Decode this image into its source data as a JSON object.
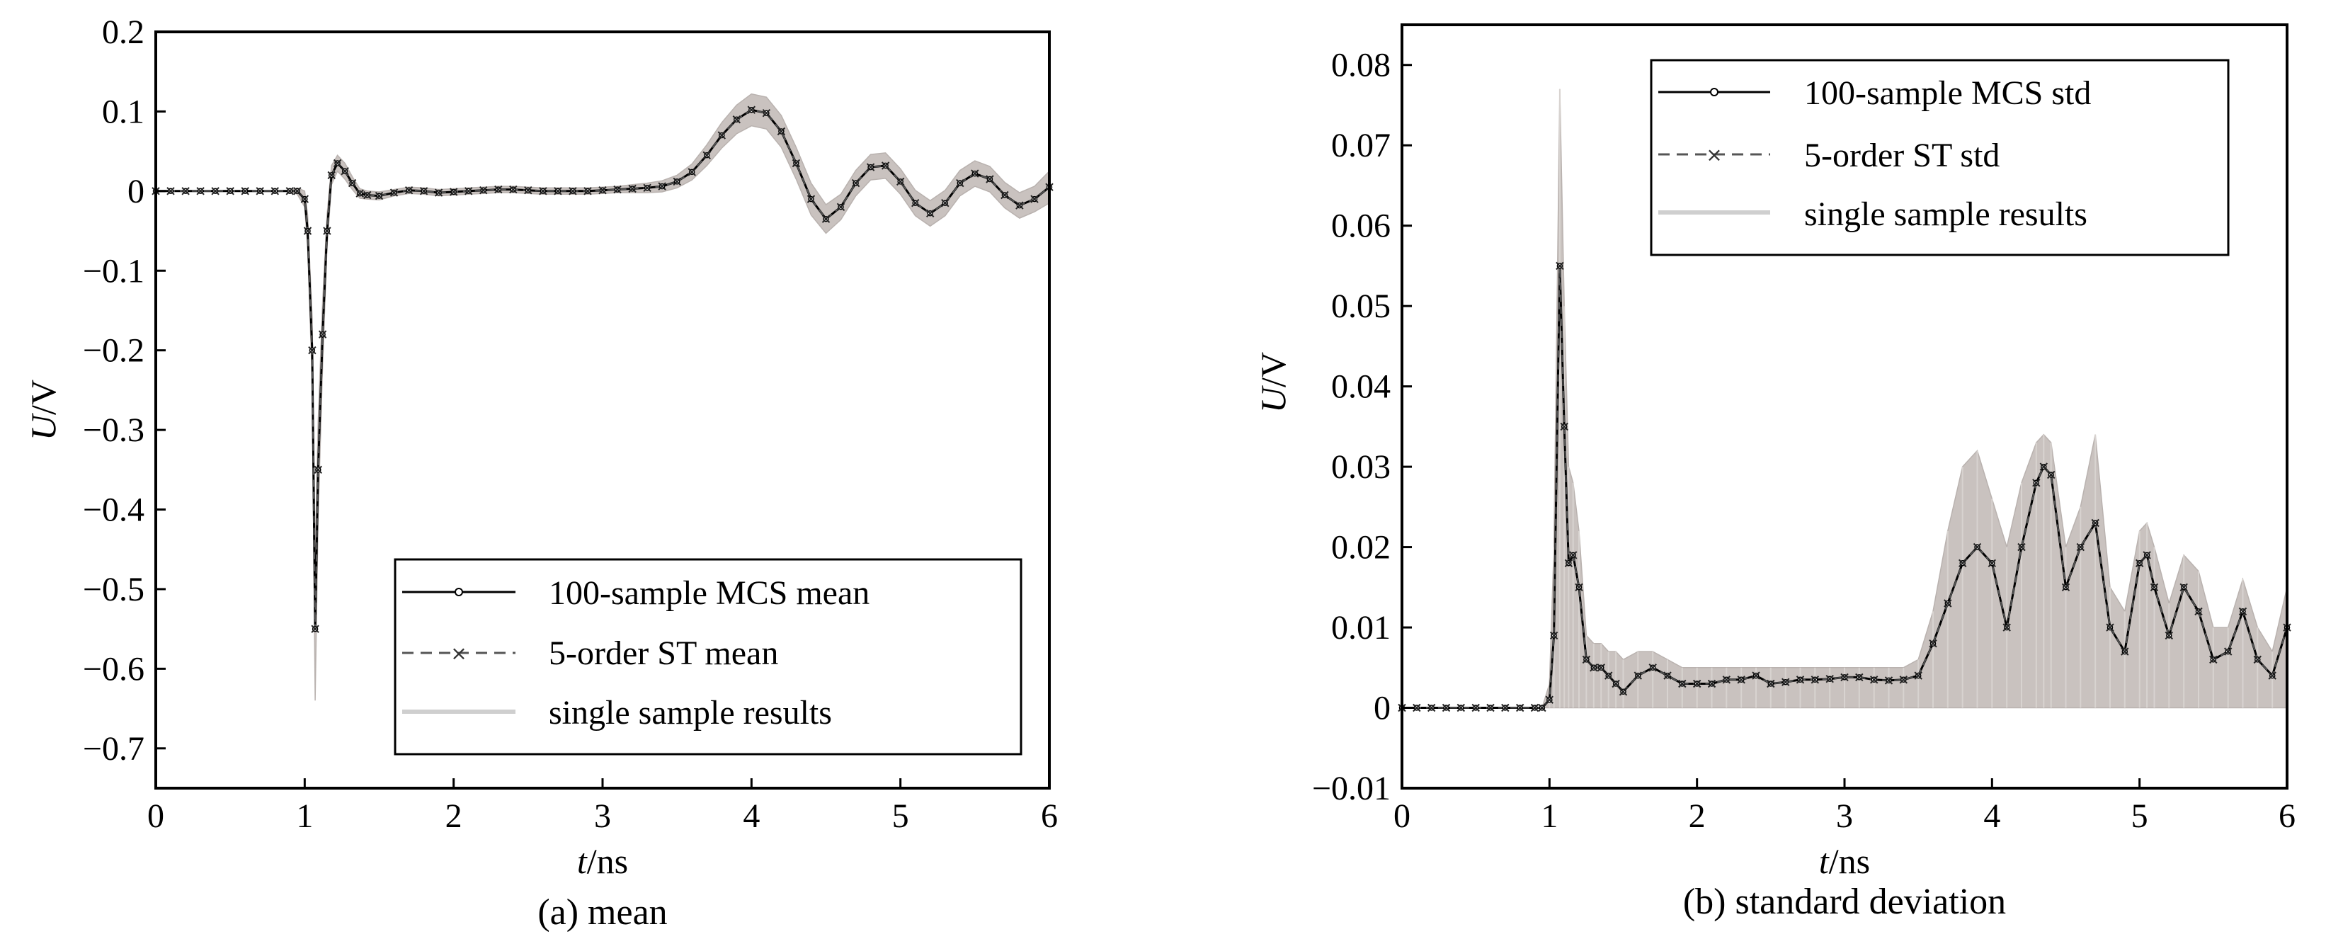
{
  "colors": {
    "band": "#c9c2bf",
    "band_dark": "#b9b2af",
    "line": "#000000",
    "dashed": "#555555",
    "legend_band": "#cfcfcf"
  },
  "chart_data": [
    {
      "type": "line",
      "caption": "(a) mean",
      "xlabel_italic": "t",
      "xlabel_unit": "/ns",
      "ylabel_italic": "U",
      "ylabel_unit": "/V",
      "xlim": [
        0,
        6
      ],
      "ylim": [
        -0.75,
        0.2
      ],
      "xticks": [
        0,
        1,
        2,
        3,
        4,
        5,
        6
      ],
      "xtick_labels": [
        "0",
        "1",
        "2",
        "3",
        "4",
        "5",
        "6"
      ],
      "yticks": [
        -0.7,
        -0.6,
        -0.5,
        -0.4,
        -0.3,
        -0.2,
        -0.1,
        0,
        0.1,
        0.2
      ],
      "ytick_labels": [
        "−0.7",
        "−0.6",
        "−0.5",
        "−0.4",
        "−0.3",
        "−0.2",
        "−0.1",
        "0",
        "0.1",
        "0.2"
      ],
      "legend_position": "bottom-right",
      "series": [
        {
          "name": "100-sample MCS mean",
          "style": "solid-circle"
        },
        {
          "name": "5-order ST mean",
          "style": "dashed-x"
        },
        {
          "name": "single sample results",
          "style": "band"
        }
      ],
      "x": [
        0,
        0.1,
        0.2,
        0.3,
        0.4,
        0.5,
        0.6,
        0.7,
        0.8,
        0.9,
        0.95,
        1.0,
        1.02,
        1.05,
        1.07,
        1.09,
        1.12,
        1.15,
        1.18,
        1.22,
        1.27,
        1.32,
        1.37,
        1.42,
        1.5,
        1.6,
        1.7,
        1.8,
        1.9,
        2.0,
        2.1,
        2.2,
        2.3,
        2.4,
        2.5,
        2.6,
        2.7,
        2.8,
        2.9,
        3.0,
        3.1,
        3.2,
        3.3,
        3.4,
        3.5,
        3.6,
        3.7,
        3.8,
        3.9,
        4.0,
        4.1,
        4.2,
        4.3,
        4.4,
        4.5,
        4.6,
        4.7,
        4.8,
        4.9,
        5.0,
        5.1,
        5.2,
        5.3,
        5.4,
        5.5,
        5.6,
        5.7,
        5.8,
        5.9,
        6.0
      ],
      "mean": [
        0,
        0,
        0,
        0,
        0,
        0,
        0,
        0,
        0,
        0,
        0,
        -0.01,
        -0.05,
        -0.2,
        -0.55,
        -0.35,
        -0.18,
        -0.05,
        0.02,
        0.035,
        0.025,
        0.01,
        -0.003,
        -0.005,
        -0.006,
        -0.002,
        0.001,
        0,
        -0.002,
        -0.001,
        0,
        0.001,
        0.002,
        0.002,
        0.001,
        0,
        0,
        0,
        0,
        0.001,
        0.002,
        0.003,
        0.004,
        0.006,
        0.012,
        0.024,
        0.045,
        0.07,
        0.09,
        0.102,
        0.098,
        0.075,
        0.035,
        -0.01,
        -0.035,
        -0.02,
        0.01,
        0.03,
        0.032,
        0.012,
        -0.015,
        -0.028,
        -0.015,
        0.01,
        0.022,
        0.015,
        -0.005,
        -0.018,
        -0.01,
        0.005
      ],
      "band_halfwidth": [
        0,
        0,
        0,
        0,
        0,
        0,
        0,
        0,
        0,
        0,
        0.004,
        0.01,
        0.02,
        0.04,
        0.09,
        0.06,
        0.04,
        0.02,
        0.012,
        0.01,
        0.01,
        0.008,
        0.006,
        0.005,
        0.005,
        0.004,
        0.004,
        0.004,
        0.004,
        0.004,
        0.004,
        0.004,
        0.004,
        0.004,
        0.004,
        0.004,
        0.004,
        0.004,
        0.004,
        0.004,
        0.004,
        0.005,
        0.006,
        0.007,
        0.008,
        0.01,
        0.013,
        0.016,
        0.018,
        0.02,
        0.02,
        0.02,
        0.02,
        0.02,
        0.018,
        0.016,
        0.016,
        0.016,
        0.016,
        0.016,
        0.016,
        0.016,
        0.016,
        0.016,
        0.016,
        0.016,
        0.016,
        0.016,
        0.016,
        0.02
      ]
    },
    {
      "type": "line",
      "caption": "(b) standard deviation",
      "xlabel_italic": "t",
      "xlabel_unit": "/ns",
      "ylabel_italic": "U",
      "ylabel_unit": "/V",
      "xlim": [
        0,
        6
      ],
      "ylim": [
        -0.01,
        0.085
      ],
      "xticks": [
        0,
        1,
        2,
        3,
        4,
        5,
        6
      ],
      "xtick_labels": [
        "0",
        "1",
        "2",
        "3",
        "4",
        "5",
        "6"
      ],
      "yticks": [
        -0.01,
        0,
        0.01,
        0.02,
        0.03,
        0.04,
        0.05,
        0.06,
        0.07,
        0.08
      ],
      "ytick_labels": [
        "−0.01",
        "0",
        "0.01",
        "0.02",
        "0.03",
        "0.04",
        "0.05",
        "0.06",
        "0.07",
        "0.08"
      ],
      "legend_position": "top-right",
      "series": [
        {
          "name": "100-sample MCS std",
          "style": "solid-circle"
        },
        {
          "name": "5-order ST std",
          "style": "dashed-x"
        },
        {
          "name": "single sample results",
          "style": "band"
        }
      ],
      "x": [
        0,
        0.1,
        0.2,
        0.3,
        0.4,
        0.5,
        0.6,
        0.7,
        0.8,
        0.9,
        0.95,
        1.0,
        1.03,
        1.07,
        1.1,
        1.13,
        1.16,
        1.2,
        1.25,
        1.3,
        1.35,
        1.4,
        1.45,
        1.5,
        1.6,
        1.7,
        1.8,
        1.9,
        2.0,
        2.1,
        2.2,
        2.3,
        2.4,
        2.5,
        2.6,
        2.7,
        2.8,
        2.9,
        3.0,
        3.1,
        3.2,
        3.3,
        3.4,
        3.5,
        3.6,
        3.7,
        3.8,
        3.9,
        4.0,
        4.1,
        4.2,
        4.3,
        4.35,
        4.4,
        4.5,
        4.6,
        4.7,
        4.8,
        4.9,
        5.0,
        5.05,
        5.1,
        5.2,
        5.3,
        5.4,
        5.5,
        5.6,
        5.7,
        5.8,
        5.9,
        6.0
      ],
      "std": [
        0,
        0,
        0,
        0,
        0,
        0,
        0,
        0,
        0,
        0,
        0,
        0.001,
        0.009,
        0.055,
        0.035,
        0.018,
        0.019,
        0.015,
        0.006,
        0.005,
        0.005,
        0.004,
        0.003,
        0.002,
        0.004,
        0.005,
        0.004,
        0.003,
        0.003,
        0.003,
        0.0035,
        0.0035,
        0.004,
        0.003,
        0.0032,
        0.0035,
        0.0035,
        0.0036,
        0.0038,
        0.0038,
        0.0035,
        0.0034,
        0.0035,
        0.004,
        0.008,
        0.013,
        0.018,
        0.02,
        0.018,
        0.01,
        0.02,
        0.028,
        0.03,
        0.029,
        0.015,
        0.02,
        0.023,
        0.01,
        0.007,
        0.018,
        0.019,
        0.015,
        0.009,
        0.015,
        0.012,
        0.006,
        0.007,
        0.012,
        0.006,
        0.004,
        0.01
      ],
      "band_top": [
        0,
        0,
        0,
        0,
        0,
        0,
        0,
        0,
        0,
        0,
        0,
        0.003,
        0.02,
        0.077,
        0.05,
        0.03,
        0.028,
        0.022,
        0.009,
        0.008,
        0.008,
        0.007,
        0.007,
        0.006,
        0.007,
        0.007,
        0.006,
        0.005,
        0.005,
        0.005,
        0.005,
        0.005,
        0.005,
        0.005,
        0.005,
        0.005,
        0.005,
        0.005,
        0.005,
        0.005,
        0.005,
        0.005,
        0.005,
        0.006,
        0.012,
        0.022,
        0.03,
        0.032,
        0.026,
        0.02,
        0.028,
        0.033,
        0.034,
        0.033,
        0.02,
        0.025,
        0.034,
        0.015,
        0.012,
        0.022,
        0.023,
        0.02,
        0.013,
        0.019,
        0.017,
        0.01,
        0.01,
        0.016,
        0.01,
        0.007,
        0.015
      ]
    }
  ]
}
